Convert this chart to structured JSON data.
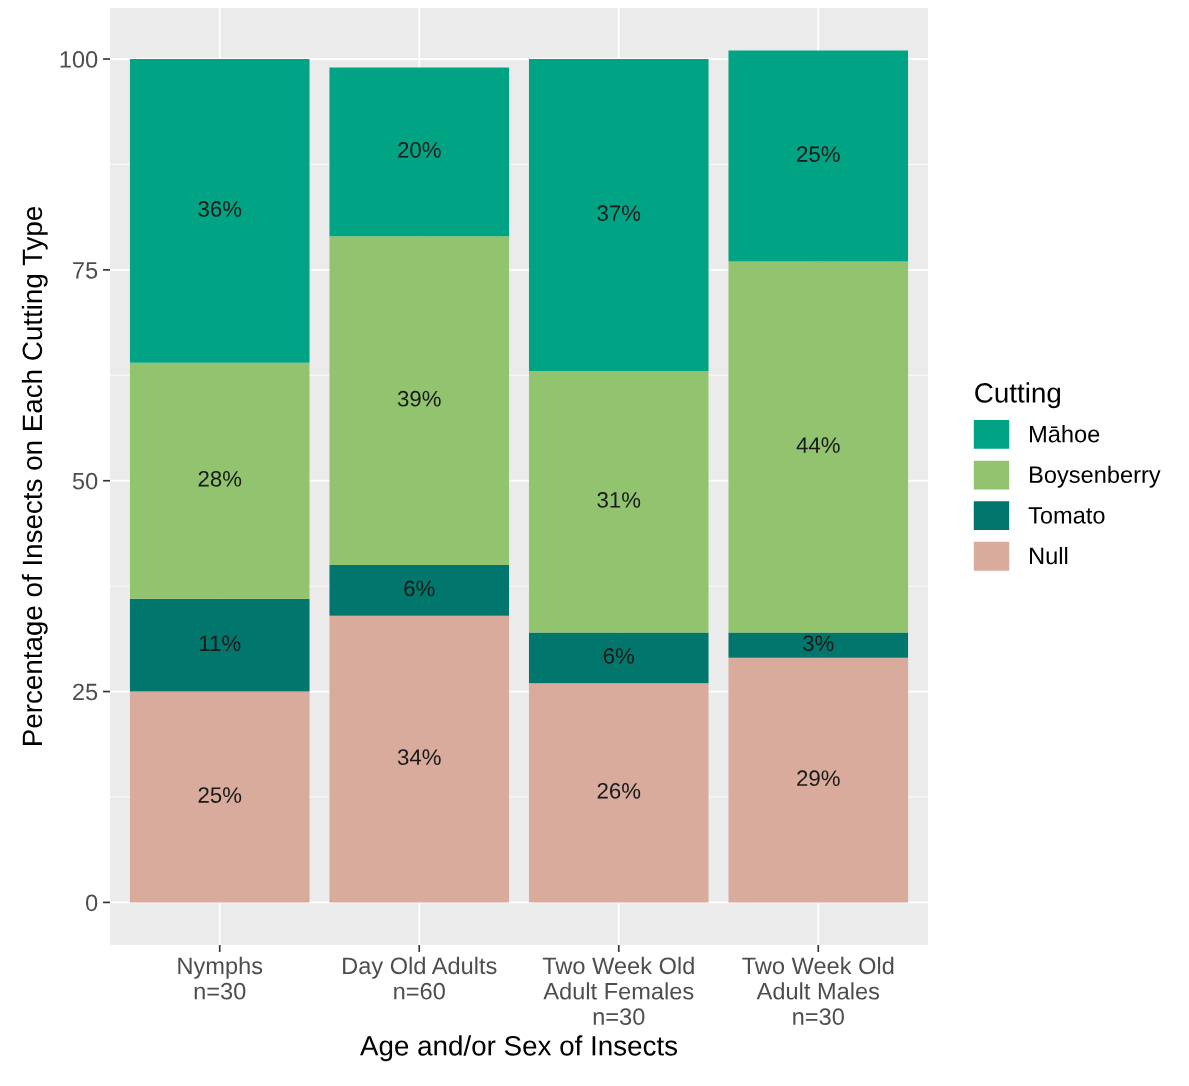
{
  "chart_data": {
    "type": "bar",
    "stacked": true,
    "xlabel": "Age and/or Sex of Insects",
    "ylabel": "Percentage of Insects on Each Cutting Type",
    "legend_title": "Cutting",
    "categories": [
      "Nymphs\nn=30",
      "Day Old Adults\nn=60",
      "Two Week Old\nAdult Females\nn=30",
      "Two Week Old\nAdult Males\nn=30"
    ],
    "series": [
      {
        "name": "Null",
        "color": "#d8ab9c",
        "values": [
          25,
          34,
          26,
          29
        ],
        "value_labels": [
          "25%",
          "34%",
          "26%",
          "29%"
        ]
      },
      {
        "name": "Tomato",
        "color": "#00766c",
        "values": [
          11,
          6,
          6,
          3
        ],
        "value_labels": [
          "11%",
          "6%",
          "6%",
          "3%"
        ]
      },
      {
        "name": "Boysenberry",
        "color": "#92c36e",
        "values": [
          28,
          39,
          31,
          44
        ],
        "value_labels": [
          "28%",
          "39%",
          "31%",
          "44%"
        ]
      },
      {
        "name": "Māhoe",
        "color": "#00a383",
        "values": [
          36,
          20,
          37,
          25
        ],
        "value_labels": [
          "36%",
          "20%",
          "37%",
          "25%"
        ]
      }
    ],
    "ylim": [
      -5.05,
      106.05
    ],
    "yticks": [
      0,
      25,
      50,
      75,
      100
    ],
    "grid": true,
    "legend": "right"
  }
}
